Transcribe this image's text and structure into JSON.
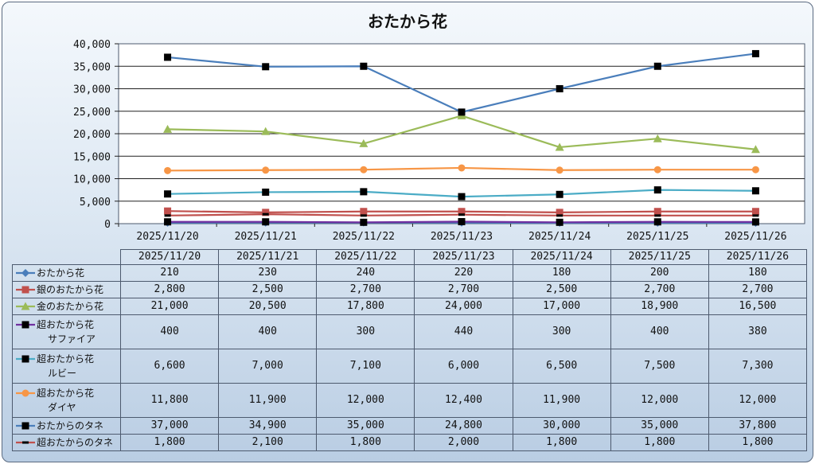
{
  "chart_data": {
    "type": "line",
    "title": "おたから花",
    "categories": [
      "2025/11/20",
      "2025/11/21",
      "2025/11/22",
      "2025/11/23",
      "2025/11/24",
      "2025/11/25",
      "2025/11/26"
    ],
    "y_ticks": [
      "0",
      "5,000",
      "10,000",
      "15,000",
      "20,000",
      "25,000",
      "30,000",
      "35,000",
      "40,000"
    ],
    "ylim": [
      0,
      40000
    ],
    "grid": "horizontal",
    "legend": "table-left",
    "series": [
      {
        "name": "おたから花",
        "name_line2": "",
        "color": "#4a7ebb",
        "marker": "diamond",
        "values": [
          210,
          230,
          240,
          220,
          180,
          200,
          180
        ],
        "labels": [
          "210",
          "230",
          "240",
          "220",
          "180",
          "200",
          "180"
        ]
      },
      {
        "name": "銀のおたから花",
        "name_line2": "",
        "color": "#c0504d",
        "marker": "square",
        "values": [
          2800,
          2500,
          2700,
          2700,
          2500,
          2700,
          2700
        ],
        "labels": [
          "2,800",
          "2,500",
          "2,700",
          "2,700",
          "2,500",
          "2,700",
          "2,700"
        ]
      },
      {
        "name": "金のおたから花",
        "name_line2": "",
        "color": "#9bbb59",
        "marker": "triangle",
        "values": [
          21000,
          20500,
          17800,
          24000,
          17000,
          18900,
          16500
        ],
        "labels": [
          "21,000",
          "20,500",
          "17,800",
          "24,000",
          "17,000",
          "18,900",
          "16,500"
        ]
      },
      {
        "name": "超おたから花",
        "name_line2": "サファイア",
        "color": "#7030a0",
        "marker": "blacksquare",
        "values": [
          400,
          400,
          300,
          440,
          300,
          400,
          380
        ],
        "labels": [
          "400",
          "400",
          "300",
          "440",
          "300",
          "400",
          "380"
        ]
      },
      {
        "name": "超おたから花",
        "name_line2": "ルビー",
        "color": "#4bacc6",
        "marker": "blacksquare",
        "values": [
          6600,
          7000,
          7100,
          6000,
          6500,
          7500,
          7300
        ],
        "labels": [
          "6,600",
          "7,000",
          "7,100",
          "6,000",
          "6,500",
          "7,500",
          "7,300"
        ]
      },
      {
        "name": "超おたから花",
        "name_line2": "ダイヤ",
        "color": "#f79646",
        "marker": "circle",
        "values": [
          11800,
          11900,
          12000,
          12400,
          11900,
          12000,
          12000
        ],
        "labels": [
          "11,800",
          "11,900",
          "12,000",
          "12,400",
          "11,900",
          "12,000",
          "12,000"
        ]
      },
      {
        "name": "おたからのタネ",
        "name_line2": "",
        "color": "#4a7ebb",
        "marker": "blacksquare",
        "values": [
          37000,
          34900,
          35000,
          24800,
          30000,
          35000,
          37800
        ],
        "labels": [
          "37,000",
          "34,900",
          "35,000",
          "24,800",
          "30,000",
          "35,000",
          "37,800"
        ]
      },
      {
        "name": "超おたからのタネ",
        "name_line2": "",
        "color": "#c0504d",
        "marker": "dash",
        "values": [
          1800,
          2100,
          1800,
          2000,
          1800,
          1800,
          1800
        ],
        "labels": [
          "1,800",
          "2,100",
          "1,800",
          "2,000",
          "1,800",
          "1,800",
          "1,800"
        ]
      }
    ]
  }
}
